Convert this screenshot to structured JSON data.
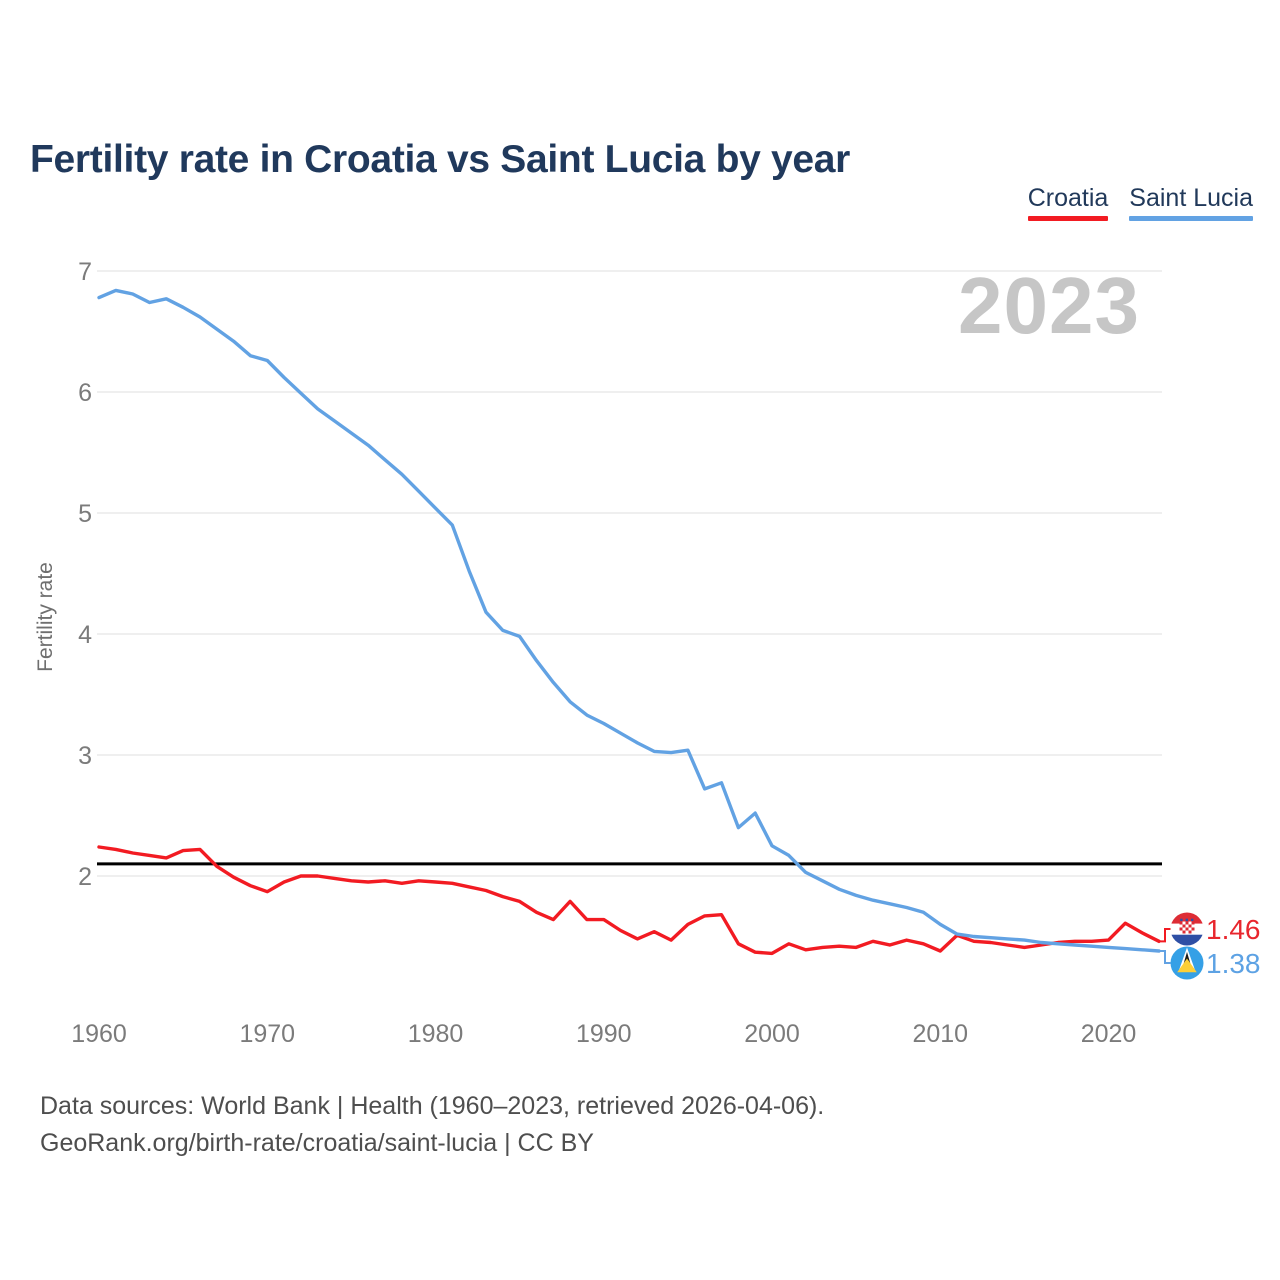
{
  "title": "Fertility rate in Croatia vs Saint Lucia by year",
  "watermark": "2023",
  "legend": [
    {
      "label": "Croatia",
      "color": "#f21b22"
    },
    {
      "label": "Saint Lucia",
      "color": "#62a2e3"
    }
  ],
  "end_labels": [
    {
      "series": "Croatia",
      "value": "1.46",
      "color": "#e8262d",
      "flag": "croatia-flag-icon"
    },
    {
      "series": "Saint Lucia",
      "value": "1.38",
      "color": "#5da2e4",
      "flag": "saint-lucia-flag-icon"
    }
  ],
  "footer": {
    "line1": "Data sources: World Bank | Health (1960–2023, retrieved 2026-04-06).",
    "line2": "GeoRank.org/birth-rate/croatia/saint-lucia | CC BY"
  },
  "chart_data": {
    "type": "line",
    "title": "Fertility rate in Croatia vs Saint Lucia by year",
    "ylabel": "Fertility rate",
    "xlabel": "",
    "x_start": 1960,
    "x_end": 2023,
    "x_ticks": [
      1960,
      1970,
      1980,
      1990,
      2000,
      2010,
      2020
    ],
    "y_ticks": [
      2,
      3,
      4,
      5,
      6,
      7
    ],
    "ylim": [
      1.1,
      7.1
    ],
    "grid": true,
    "legend_position": "top-right",
    "reference_line": {
      "value": 2.1,
      "color": "#000000"
    },
    "series": [
      {
        "name": "Croatia",
        "color": "#f21b22",
        "end_value": 1.46,
        "values": [
          2.24,
          2.22,
          2.19,
          2.17,
          2.15,
          2.21,
          2.22,
          2.08,
          1.99,
          1.92,
          1.87,
          1.95,
          2.0,
          2.0,
          1.98,
          1.96,
          1.95,
          1.96,
          1.94,
          1.96,
          1.95,
          1.94,
          1.91,
          1.88,
          1.83,
          1.79,
          1.7,
          1.64,
          1.79,
          1.64,
          1.64,
          1.55,
          1.48,
          1.54,
          1.47,
          1.6,
          1.67,
          1.68,
          1.44,
          1.37,
          1.36,
          1.44,
          1.39,
          1.41,
          1.42,
          1.41,
          1.46,
          1.43,
          1.47,
          1.44,
          1.38,
          1.51,
          1.46,
          1.45,
          1.43,
          1.41,
          1.43,
          1.45,
          1.46,
          1.46,
          1.47,
          1.61,
          1.53,
          1.46
        ]
      },
      {
        "name": "Saint Lucia",
        "color": "#62a2e3",
        "end_value": 1.38,
        "values": [
          6.78,
          6.84,
          6.81,
          6.74,
          6.77,
          6.7,
          6.62,
          6.52,
          6.42,
          6.3,
          6.26,
          6.12,
          5.99,
          5.86,
          5.76,
          5.66,
          5.56,
          5.44,
          5.32,
          5.18,
          5.04,
          4.9,
          4.52,
          4.18,
          4.03,
          3.98,
          3.78,
          3.6,
          3.44,
          3.33,
          3.26,
          3.18,
          3.1,
          3.03,
          3.02,
          3.04,
          2.72,
          2.77,
          2.4,
          2.52,
          2.25,
          2.17,
          2.03,
          1.96,
          1.89,
          1.84,
          1.8,
          1.77,
          1.74,
          1.7,
          1.6,
          1.52,
          1.5,
          1.49,
          1.48,
          1.47,
          1.45,
          1.44,
          1.43,
          1.42,
          1.41,
          1.4,
          1.39,
          1.38
        ]
      }
    ]
  }
}
